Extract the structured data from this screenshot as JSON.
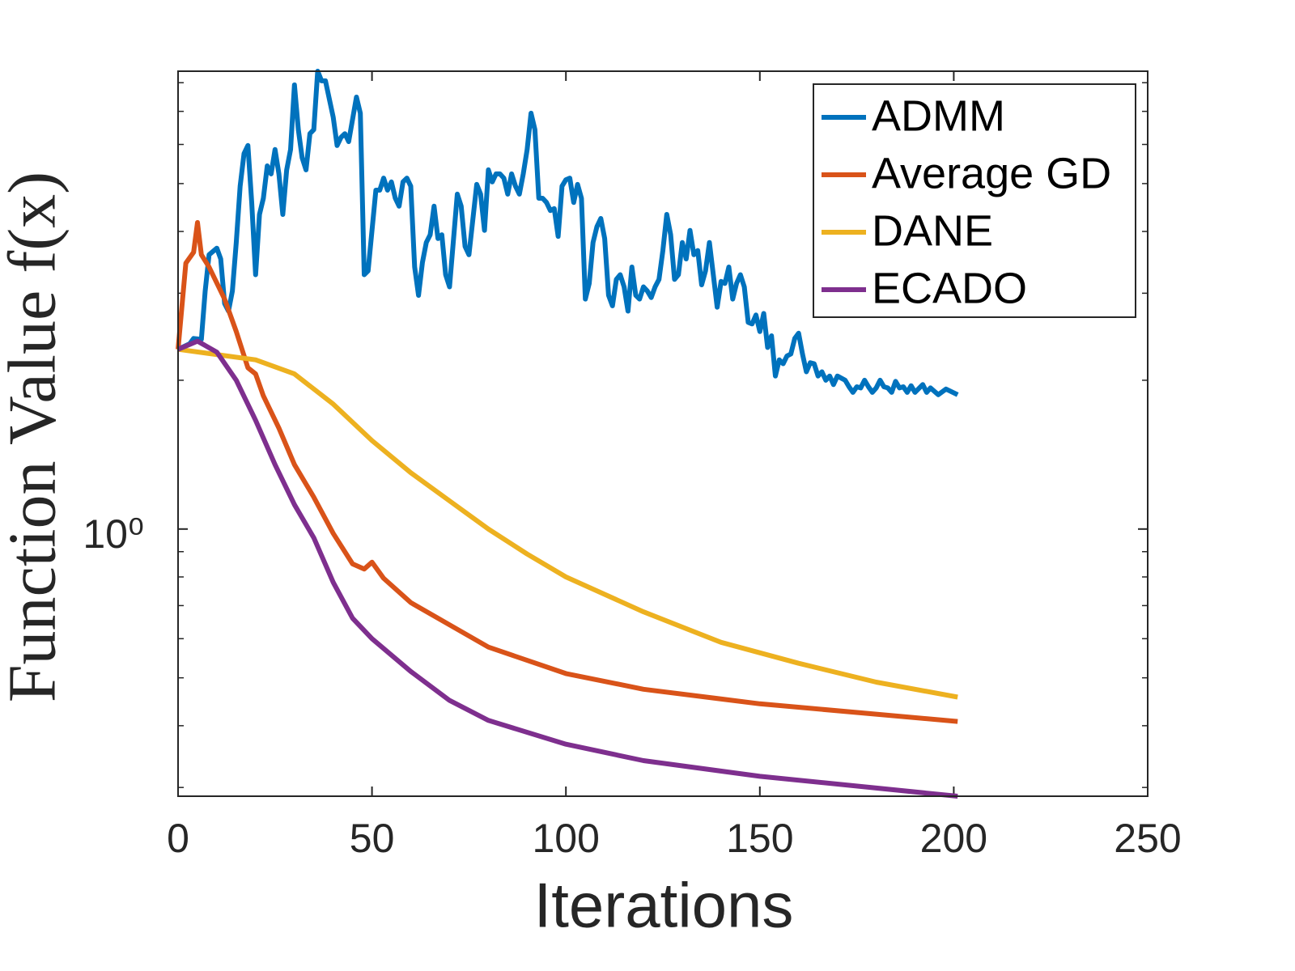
{
  "chart_data": {
    "type": "line",
    "xlabel": "Iterations",
    "ylabel": "Function Value f(x)",
    "xlim": [
      0,
      250
    ],
    "xticks": [
      0,
      50,
      100,
      150,
      200,
      250
    ],
    "ylim": [
      0.288,
      8.44
    ],
    "yscale": "log",
    "yticks": [
      {
        "value": 1,
        "label": "10⁰"
      }
    ],
    "minor_yticks": [
      0.3,
      0.4,
      0.5,
      0.6,
      0.7,
      0.8,
      0.9,
      2,
      3,
      4,
      5,
      6,
      7,
      8
    ],
    "grid": false,
    "legend": "northeast",
    "series": [
      {
        "name": "ADMM",
        "color": "#0072bd",
        "x": [
          0,
          3,
          4,
          6,
          7,
          8,
          10,
          11,
          12,
          13,
          14,
          15,
          16,
          17,
          18,
          19,
          20,
          21,
          22,
          23,
          24,
          25,
          26,
          27,
          28,
          29,
          30,
          31,
          32,
          33,
          34,
          35,
          36,
          37,
          38,
          40,
          41,
          42,
          43,
          44,
          46,
          47,
          48,
          49,
          51,
          52,
          53,
          54,
          55,
          56,
          57,
          58,
          59,
          60,
          61,
          62,
          63,
          64,
          65,
          66,
          67,
          68,
          69,
          70,
          72,
          73,
          74,
          75,
          77,
          78,
          79,
          80,
          81,
          82,
          83,
          84,
          85,
          86,
          87,
          88,
          89,
          90,
          91,
          92,
          93,
          94,
          95,
          96,
          97,
          98,
          99,
          100,
          101,
          102,
          103,
          104,
          105,
          106,
          107,
          108,
          109,
          110,
          111,
          112,
          113,
          114,
          115,
          116,
          117,
          118,
          119,
          120,
          121,
          122,
          123,
          124,
          125,
          126,
          127,
          128,
          129,
          130,
          131,
          132,
          133,
          134,
          135,
          136,
          137,
          138,
          139,
          140,
          141,
          142,
          143,
          144,
          145,
          146,
          147,
          148,
          149,
          150,
          151,
          152,
          153,
          154,
          155,
          156,
          157,
          158,
          159,
          160,
          161,
          162,
          163,
          164,
          165,
          166,
          167,
          168,
          169,
          170,
          171,
          172,
          173,
          174,
          175,
          176,
          177,
          178,
          179,
          180,
          181,
          182,
          183,
          184,
          185,
          186,
          187,
          188,
          189,
          190,
          192,
          193,
          194,
          196,
          198,
          201
        ],
        "values": [
          2.31,
          2.37,
          2.43,
          2.42,
          3.03,
          3.59,
          3.7,
          3.52,
          2.86,
          2.76,
          3.03,
          3.8,
          4.94,
          5.75,
          5.97,
          4.58,
          3.27,
          4.33,
          4.67,
          5.43,
          5.23,
          5.86,
          5.23,
          4.33,
          5.33,
          5.86,
          7.92,
          6.43,
          5.64,
          5.33,
          6.31,
          6.43,
          8.44,
          8.07,
          8.07,
          6.81,
          5.97,
          6.2,
          6.31,
          6.08,
          7.48,
          6.94,
          3.27,
          3.33,
          4.85,
          4.85,
          5.13,
          4.85,
          5.04,
          4.67,
          4.5,
          5.04,
          5.13,
          4.94,
          3.39,
          2.97,
          3.46,
          3.8,
          3.94,
          4.5,
          3.87,
          3.94,
          3.27,
          3.09,
          4.76,
          4.5,
          3.73,
          3.59,
          4.98,
          4.76,
          4.02,
          5.33,
          5.04,
          5.23,
          5.23,
          5.13,
          4.76,
          5.23,
          4.94,
          4.76,
          5.23,
          5.86,
          6.94,
          6.43,
          4.67,
          4.67,
          4.58,
          4.41,
          4.45,
          3.91,
          4.94,
          5.09,
          5.13,
          4.58,
          4.98,
          4.67,
          2.92,
          3.14,
          3.8,
          4.09,
          4.25,
          3.87,
          2.97,
          2.83,
          3.2,
          3.27,
          3.09,
          2.76,
          3.39,
          2.97,
          2.92,
          3.09,
          3.03,
          2.94,
          3.09,
          3.2,
          3.66,
          4.33,
          3.94,
          3.2,
          3.27,
          3.8,
          3.52,
          4.02,
          3.59,
          3.66,
          3.12,
          3.33,
          3.8,
          3.27,
          2.81,
          3.17,
          3.14,
          3.39,
          2.92,
          3.14,
          3.27,
          3.09,
          2.62,
          2.6,
          2.71,
          2.51,
          2.73,
          2.33,
          2.46,
          2.04,
          2.2,
          2.16,
          2.24,
          2.26,
          2.43,
          2.49,
          2.26,
          2.08,
          2.17,
          2.16,
          2.04,
          2.08,
          2.0,
          2.04,
          1.96,
          2.04,
          2.02,
          2.0,
          1.94,
          1.89,
          1.94,
          1.93,
          2.0,
          1.94,
          1.89,
          1.93,
          2.0,
          1.94,
          1.93,
          1.89,
          1.99,
          1.93,
          1.94,
          1.89,
          1.95,
          1.89,
          1.96,
          1.89,
          1.93,
          1.87,
          1.92,
          1.87
        ]
      },
      {
        "name": "Average GD",
        "color": "#d95319",
        "x": [
          0,
          2,
          4,
          5,
          6,
          8,
          12,
          15,
          18,
          20,
          22,
          26,
          30,
          35,
          40,
          45,
          48,
          50,
          53,
          60,
          70,
          80,
          100,
          120,
          150,
          201
        ],
        "values": [
          2.31,
          3.45,
          3.63,
          4.17,
          3.59,
          3.39,
          2.92,
          2.51,
          2.12,
          2.06,
          1.86,
          1.6,
          1.35,
          1.16,
          0.98,
          0.85,
          0.83,
          0.857,
          0.795,
          0.71,
          0.64,
          0.577,
          0.51,
          0.474,
          0.443,
          0.408
        ]
      },
      {
        "name": "DANE",
        "color": "#edb120",
        "x": [
          0,
          20,
          30,
          40,
          50,
          60,
          70,
          80,
          90,
          100,
          120,
          140,
          160,
          180,
          201
        ],
        "values": [
          2.31,
          2.2,
          2.06,
          1.79,
          1.51,
          1.3,
          1.14,
          1.0,
          0.89,
          0.8,
          0.68,
          0.59,
          0.535,
          0.49,
          0.457
        ]
      },
      {
        "name": "ECADO",
        "color": "#7e2f8e",
        "x": [
          0,
          5,
          10,
          15,
          20,
          25,
          30,
          35,
          40,
          45,
          50,
          60,
          70,
          80,
          100,
          120,
          150,
          201
        ],
        "values": [
          2.31,
          2.4,
          2.28,
          2.0,
          1.66,
          1.35,
          1.12,
          0.96,
          0.78,
          0.66,
          0.6,
          0.515,
          0.45,
          0.41,
          0.367,
          0.34,
          0.316,
          0.288
        ]
      }
    ]
  }
}
